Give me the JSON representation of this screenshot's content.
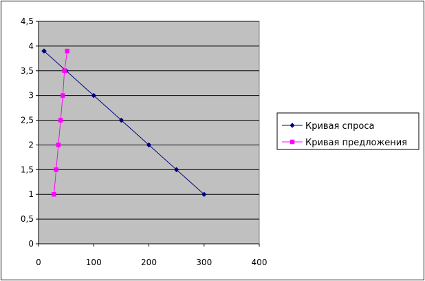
{
  "chart_data": {
    "type": "scatter",
    "title": "",
    "xlabel": "",
    "ylabel": "",
    "xlim": [
      0,
      400
    ],
    "ylim": [
      0,
      4.5
    ],
    "x_ticks": [
      0,
      100,
      200,
      300,
      400
    ],
    "x_tick_labels": [
      "0",
      "100",
      "200",
      "300",
      "400"
    ],
    "y_ticks": [
      0,
      0.5,
      1,
      1.5,
      2,
      2.5,
      3,
      3.5,
      4,
      4.5
    ],
    "y_tick_labels": [
      "0",
      "0,5",
      "1",
      "1,5",
      "2",
      "2,5",
      "3",
      "3,5",
      "4",
      "4,5"
    ],
    "grid": "horizontal",
    "legend_position": "right",
    "plot_background": "#c0c0c0",
    "series": [
      {
        "name": "Кривая спроса",
        "color": "#000080",
        "marker": "diamond",
        "points": [
          [
            10,
            3.9
          ],
          [
            50,
            3.5
          ],
          [
            100,
            3.0
          ],
          [
            150,
            2.5
          ],
          [
            200,
            2.0
          ],
          [
            250,
            1.5
          ],
          [
            300,
            1.0
          ]
        ]
      },
      {
        "name": "Кривая предложения",
        "color": "#ff00ff",
        "marker": "square",
        "points": [
          [
            28,
            1.0
          ],
          [
            32,
            1.5
          ],
          [
            36,
            2.0
          ],
          [
            40,
            2.5
          ],
          [
            44,
            3.0
          ],
          [
            47,
            3.5
          ],
          [
            52,
            3.9
          ]
        ]
      }
    ]
  }
}
